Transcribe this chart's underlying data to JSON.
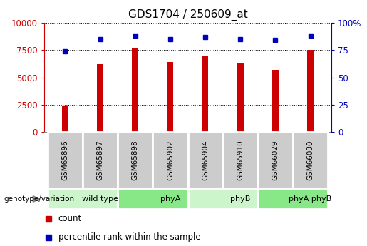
{
  "title": "GDS1704 / 250609_at",
  "samples": [
    "GSM65896",
    "GSM65897",
    "GSM65898",
    "GSM65902",
    "GSM65904",
    "GSM65910",
    "GSM66029",
    "GSM66030"
  ],
  "counts": [
    2400,
    6200,
    7700,
    6400,
    6900,
    6300,
    5700,
    7500
  ],
  "percentile_ranks": [
    74,
    85,
    88,
    85,
    87,
    85,
    84,
    88
  ],
  "groups": [
    {
      "label": "wild type",
      "start": 0,
      "end": 2,
      "color": "#ccf5cc"
    },
    {
      "label": "phyA",
      "start": 2,
      "end": 4,
      "color": "#88e888"
    },
    {
      "label": "phyB",
      "start": 4,
      "end": 6,
      "color": "#ccf5cc"
    },
    {
      "label": "phyA phyB",
      "start": 6,
      "end": 8,
      "color": "#88e888"
    }
  ],
  "bar_color": "#cc0000",
  "dot_color": "#0000bb",
  "left_axis_color": "#cc0000",
  "right_axis_color": "#0000bb",
  "ylim_left": [
    0,
    10000
  ],
  "ylim_right": [
    0,
    100
  ],
  "yticks_left": [
    0,
    2500,
    5000,
    7500,
    10000
  ],
  "yticks_right": [
    0,
    25,
    50,
    75,
    100
  ],
  "legend_count_label": "count",
  "legend_percentile_label": "percentile rank within the sample",
  "genotype_label": "genotype/variation",
  "bg_sample_row": "#cccccc",
  "title_fontsize": 11,
  "tick_fontsize": 8.5,
  "bar_width": 0.18
}
